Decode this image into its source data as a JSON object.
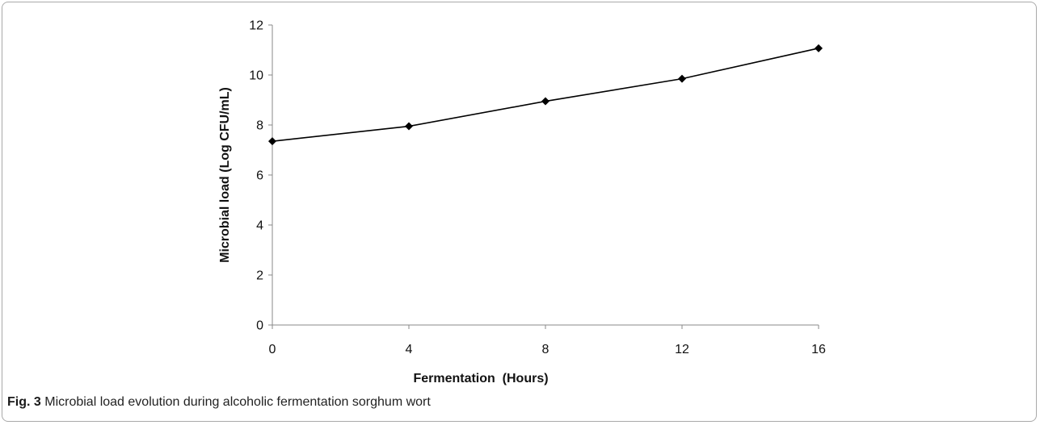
{
  "chart_data": {
    "type": "line",
    "x": [
      0,
      4,
      8,
      12,
      16
    ],
    "series": [
      {
        "values": [
          7.35,
          7.95,
          8.95,
          9.85,
          11.07
        ]
      }
    ],
    "xlabel": "Fermentation  (Hours)",
    "ylabel": "Microbial load (Log CFU/mL)",
    "xticks": [
      "0",
      "4",
      "8",
      "12",
      "16"
    ],
    "yticks": [
      "0",
      "2",
      "4",
      "6",
      "8",
      "10",
      "12"
    ],
    "xlim": [
      0,
      16
    ],
    "ylim": [
      0,
      12
    ],
    "grid": false,
    "marker": "diamond",
    "line_color": "#000000"
  },
  "caption": {
    "label": "Fig. 3",
    "text": "Microbial load evolution during alcoholic fermentation sorghum wort"
  }
}
